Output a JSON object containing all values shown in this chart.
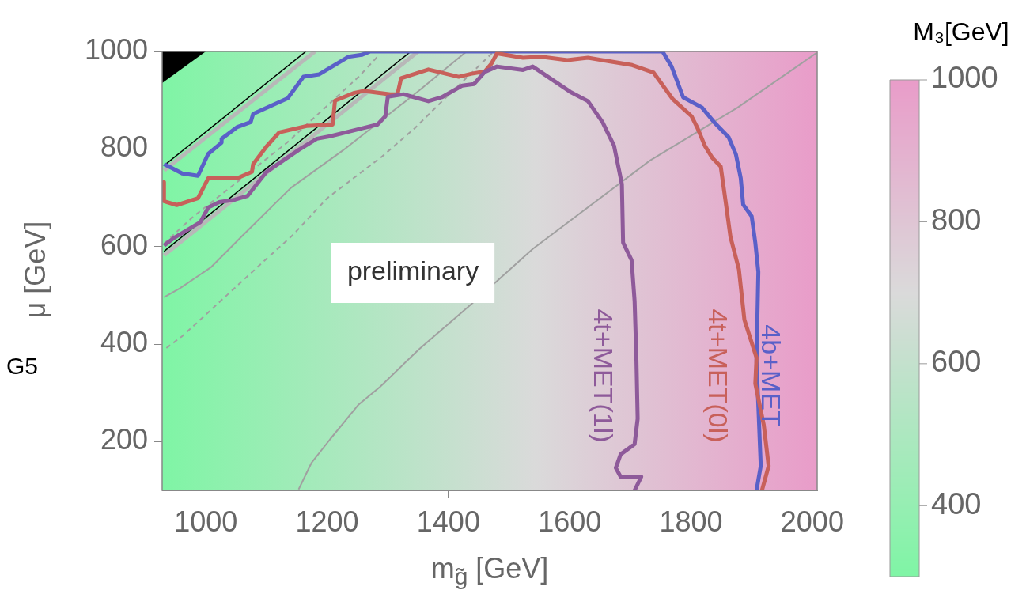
{
  "chart_data": {
    "type": "line",
    "xlabel": "m$_{g̃}$ [GeV]",
    "ylabel": "μ [GeV]",
    "clabel": "M₃[GeV]",
    "xlim": [
      928,
      2008
    ],
    "ylim": [
      100,
      1000
    ],
    "xticks": [
      1000,
      1200,
      1400,
      1600,
      1800,
      2000
    ],
    "yticks": [
      200,
      400,
      600,
      800,
      1000
    ],
    "clim": [
      300,
      1000
    ],
    "cticks": [
      400,
      600,
      800,
      1000
    ],
    "marker": "none",
    "legend": false,
    "annotations": [
      "preliminary",
      "G5"
    ],
    "series": [
      {
        "name": "4t+MET(1l)",
        "color": "#8e5a9a",
        "x": [
          931,
          948,
          991,
          1004,
          1022,
          1048,
          1069,
          1100,
          1153,
          1183,
          1205,
          1257,
          1283,
          1296,
          1300,
          1326,
          1367,
          1389,
          1423,
          1442,
          1460,
          1480,
          1523,
          1539,
          1601,
          1630,
          1654,
          1673,
          1686,
          1688,
          1702,
          1707,
          1710,
          1712,
          1707,
          1684,
          1676,
          1684,
          1718,
          1707
        ],
        "values": [
          602,
          618,
          650,
          680,
          691,
          696,
          704,
          753,
          798,
          821,
          826,
          842,
          850,
          867,
          907,
          912,
          898,
          906,
          930,
          933,
          958,
          969,
          962,
          969,
          917,
          898,
          855,
          807,
          728,
          608,
          572,
          488,
          367,
          247,
          195,
          174,
          146,
          128,
          128,
          100
        ]
      },
      {
        "name": "4t+MET(0l)",
        "color": "#c8605a",
        "x": [
          931,
          931,
          952,
          987,
          1004,
          1052,
          1076,
          1078,
          1100,
          1121,
          1166,
          1209,
          1213,
          1245,
          1261,
          1304,
          1316,
          1322,
          1367,
          1417,
          1437,
          1460,
          1471,
          1480,
          1523,
          1553,
          1596,
          1630,
          1703,
          1738,
          1770,
          1801,
          1811,
          1823,
          1835,
          1849,
          1857,
          1865,
          1879,
          1888,
          1908,
          1906,
          1920,
          1928,
          1917
        ],
        "values": [
          732,
          693,
          685,
          699,
          740,
          740,
          753,
          769,
          805,
          834,
          847,
          850,
          899,
          915,
          919,
          912,
          912,
          945,
          963,
          948,
          954,
          959,
          975,
          996,
          987,
          989,
          982,
          987,
          972,
          957,
          902,
          867,
          842,
          806,
          782,
          764,
          693,
          620,
          553,
          450,
          372,
          319,
          234,
          150,
          100
        ]
      },
      {
        "name": "4b+MET",
        "color": "#5a60c8",
        "x": [
          931,
          939,
          961,
          987,
          1004,
          1026,
          1026,
          1052,
          1074,
          1078,
          1135,
          1161,
          1187,
          1235,
          1257,
          1271,
          1753,
          1768,
          1787,
          1818,
          1838,
          1862,
          1874,
          1882,
          1886,
          1900,
          1906,
          1911,
          1908,
          1915,
          1908
        ],
        "values": [
          769,
          764,
          750,
          745,
          790,
          813,
          821,
          845,
          855,
          872,
          904,
          948,
          953,
          989,
          993,
          1000,
          1000,
          969,
          906,
          885,
          855,
          824,
          789,
          740,
          686,
          662,
          608,
          548,
          367,
          150,
          100
        ]
      },
      {
        "color": "#a0a0a0",
        "line_style": "solid",
        "x": [
          1153,
          1174,
          1205,
          1252,
          1287,
          1352,
          1437,
          1539,
          1732,
          1877,
          2007
        ],
        "values": [
          102,
          156,
          205,
          276,
          312,
          390,
          481,
          595,
          776,
          885,
          997
        ]
      },
      {
        "color": "#a0a0a0",
        "line_style": "solid",
        "x": [
          931,
          957,
          1009,
          1061,
          1140,
          1226,
          1352,
          1430
        ],
        "values": [
          496,
          514,
          558,
          623,
          720,
          797,
          920,
          1000
        ]
      },
      {
        "color": "#a0a0a0",
        "line_style": "dashed",
        "x": [
          935,
          961,
          1004,
          1052,
          1095,
          1143,
          1200,
          1291,
          1344,
          1384,
          1475
        ],
        "values": [
          392,
          416,
          465,
          520,
          569,
          623,
          699,
          785,
          842,
          891,
          1000
        ]
      },
      {
        "color": "#a0a0a0",
        "line_style": "dashed",
        "x": [
          931,
          978,
          1134,
          1252,
          1283
        ],
        "values": [
          606,
          660,
          813,
          948,
          989
        ]
      },
      {
        "color": "#b8b8b8",
        "line_style": "solid",
        "x": [
          931,
          1180
        ],
        "values": [
          756,
          1000
        ]
      },
      {
        "color": "#000000",
        "line_style": "solid",
        "x": [
          931,
          1165
        ],
        "values": [
          766,
          1000
        ]
      },
      {
        "color": "#b8b8b8",
        "line_style": "solid",
        "x": [
          931,
          1350
        ],
        "values": [
          582,
          1000
        ]
      },
      {
        "color": "#000000",
        "line_style": "solid",
        "x": [
          931,
          1338
        ],
        "values": [
          590,
          1000
        ]
      },
      {
        "type": "area",
        "color": "#000000",
        "x": [
          928,
          1000
        ],
        "values": [
          935,
          1000
        ]
      }
    ]
  }
}
